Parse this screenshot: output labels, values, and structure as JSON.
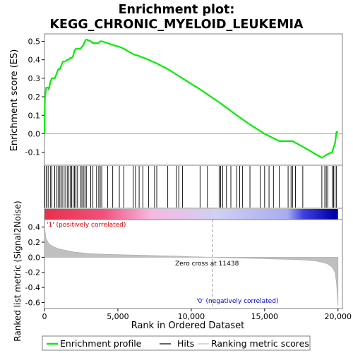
{
  "chart_data": {
    "type": "line",
    "title_line1": "Enrichment plot:",
    "title_line2": "KEGG_CHRONIC_MYELOID_LEUKEMIA",
    "xlabel": "Rank in Ordered Dataset",
    "ylabel_top": "Enrichment score (ES)",
    "ylabel_bottom": "Ranked list metric (Signal2Noise)",
    "xlim": [
      0,
      20300
    ],
    "x_ticks": [
      0,
      5000,
      10000,
      15000,
      20000
    ],
    "x_tick_labels": [
      "0",
      "5,000",
      "10,000",
      "15,000",
      "20,000"
    ],
    "es_ylim": [
      -0.17,
      0.54
    ],
    "es_ticks": [
      -0.1,
      0.0,
      0.1,
      0.2,
      0.3,
      0.4,
      0.5
    ],
    "es_tick_labels": [
      "-0.1",
      "0.0",
      "0.1",
      "0.2",
      "0.3",
      "0.4",
      "0.5"
    ],
    "metric_ylim": [
      -0.68,
      0.5
    ],
    "metric_ticks": [
      -0.6,
      -0.4,
      -0.2,
      0.0,
      0.2,
      0.4
    ],
    "metric_tick_labels": [
      "-0.6",
      "-0.4",
      "-0.2",
      "0.0",
      "0.2",
      "0.4"
    ],
    "zero_cross": 11438,
    "zero_cross_label": "Zero cross at 11438",
    "pos_label": "'1' (positively correlated)",
    "neg_label": "'0' (negatively correlated)",
    "colors": {
      "es_line": "#00ee00",
      "pos": "#dd0000",
      "neg": "#0000dd",
      "metric_fill": "#c0c0c0",
      "axis_frame": "#808080"
    },
    "legend": [
      {
        "label": "Enrichment profile",
        "color": "#00ee00"
      },
      {
        "label": "Hits",
        "color": "#000000"
      },
      {
        "label": "Ranking metric scores",
        "color": "#c0c0c0"
      }
    ],
    "hits": [
      30,
      120,
      250,
      400,
      500,
      700,
      850,
      950,
      1050,
      1150,
      1250,
      1400,
      1550,
      1650,
      1750,
      1850,
      1950,
      2050,
      2150,
      2250,
      2450,
      2550,
      2650,
      2750,
      2850,
      3150,
      3300,
      3550,
      3700,
      3800,
      3900,
      4300,
      4650,
      5100,
      5400,
      6050,
      6200,
      6450,
      6700,
      7100,
      7500,
      7650,
      8400,
      9000,
      9150,
      9400,
      10600,
      11100,
      11900,
      12000,
      12150,
      12400,
      12700,
      13100,
      13300,
      13500,
      14000,
      14700,
      15000,
      15300,
      15600,
      16000,
      16600,
      16800,
      16900,
      17100,
      17600,
      18900,
      19100,
      19200,
      19300,
      19600,
      19700,
      19800,
      19900
    ],
    "es_profile": {
      "x": [
        0,
        30,
        120,
        250,
        300,
        400,
        500,
        700,
        850,
        950,
        1050,
        1150,
        1250,
        1400,
        1550,
        1650,
        1750,
        1850,
        1950,
        2050,
        2150,
        2250,
        2450,
        2550,
        2650,
        2750,
        2850,
        3150,
        3300,
        3550,
        3700,
        3800,
        3900,
        4300,
        4650,
        5100,
        5400,
        6050,
        6450,
        7100,
        7650,
        8400,
        9400,
        10600,
        11900,
        13100,
        14000,
        15000,
        16000,
        16600,
        16900,
        17600,
        18900,
        19300,
        19600,
        19800,
        19900,
        20000
      ],
      "y": [
        0.0,
        0.19,
        0.25,
        0.25,
        0.24,
        0.28,
        0.3,
        0.3,
        0.33,
        0.35,
        0.35,
        0.37,
        0.39,
        0.39,
        0.4,
        0.4,
        0.41,
        0.41,
        0.42,
        0.45,
        0.46,
        0.46,
        0.46,
        0.47,
        0.48,
        0.5,
        0.51,
        0.5,
        0.49,
        0.49,
        0.49,
        0.5,
        0.5,
        0.49,
        0.48,
        0.47,
        0.46,
        0.43,
        0.42,
        0.4,
        0.38,
        0.35,
        0.3,
        0.24,
        0.17,
        0.1,
        0.05,
        0.0,
        -0.04,
        -0.04,
        -0.04,
        -0.07,
        -0.13,
        -0.11,
        -0.1,
        -0.05,
        0.01,
        0.01
      ]
    },
    "metric_profile": {
      "x": [
        0,
        100,
        300,
        600,
        1000,
        1500,
        2000,
        3000,
        4000,
        5000,
        6000,
        7000,
        8000,
        9000,
        10000,
        11438,
        12000,
        13000,
        14000,
        15000,
        16000,
        17000,
        17500,
        18000,
        18500,
        19000,
        19300,
        19600,
        19800,
        19900,
        20000
      ],
      "y": [
        0.42,
        0.25,
        0.18,
        0.14,
        0.11,
        0.09,
        0.07,
        0.05,
        0.04,
        0.035,
        0.03,
        0.025,
        0.02,
        0.015,
        0.008,
        0.0,
        -0.005,
        -0.01,
        -0.015,
        -0.02,
        -0.025,
        -0.03,
        -0.035,
        -0.04,
        -0.05,
        -0.07,
        -0.09,
        -0.13,
        -0.2,
        -0.35,
        -0.64
      ]
    },
    "heatmap_stops": [
      {
        "x": 0,
        "color": "#e8304a"
      },
      {
        "x": 4000,
        "color": "#f0507a"
      },
      {
        "x": 7400,
        "color": "#f7b8e0"
      },
      {
        "x": 11900,
        "color": "#cfd0f5"
      },
      {
        "x": 16800,
        "color": "#a8acef"
      },
      {
        "x": 17900,
        "color": "#4040e0"
      },
      {
        "x": 20000,
        "color": "#0000aa"
      }
    ]
  }
}
